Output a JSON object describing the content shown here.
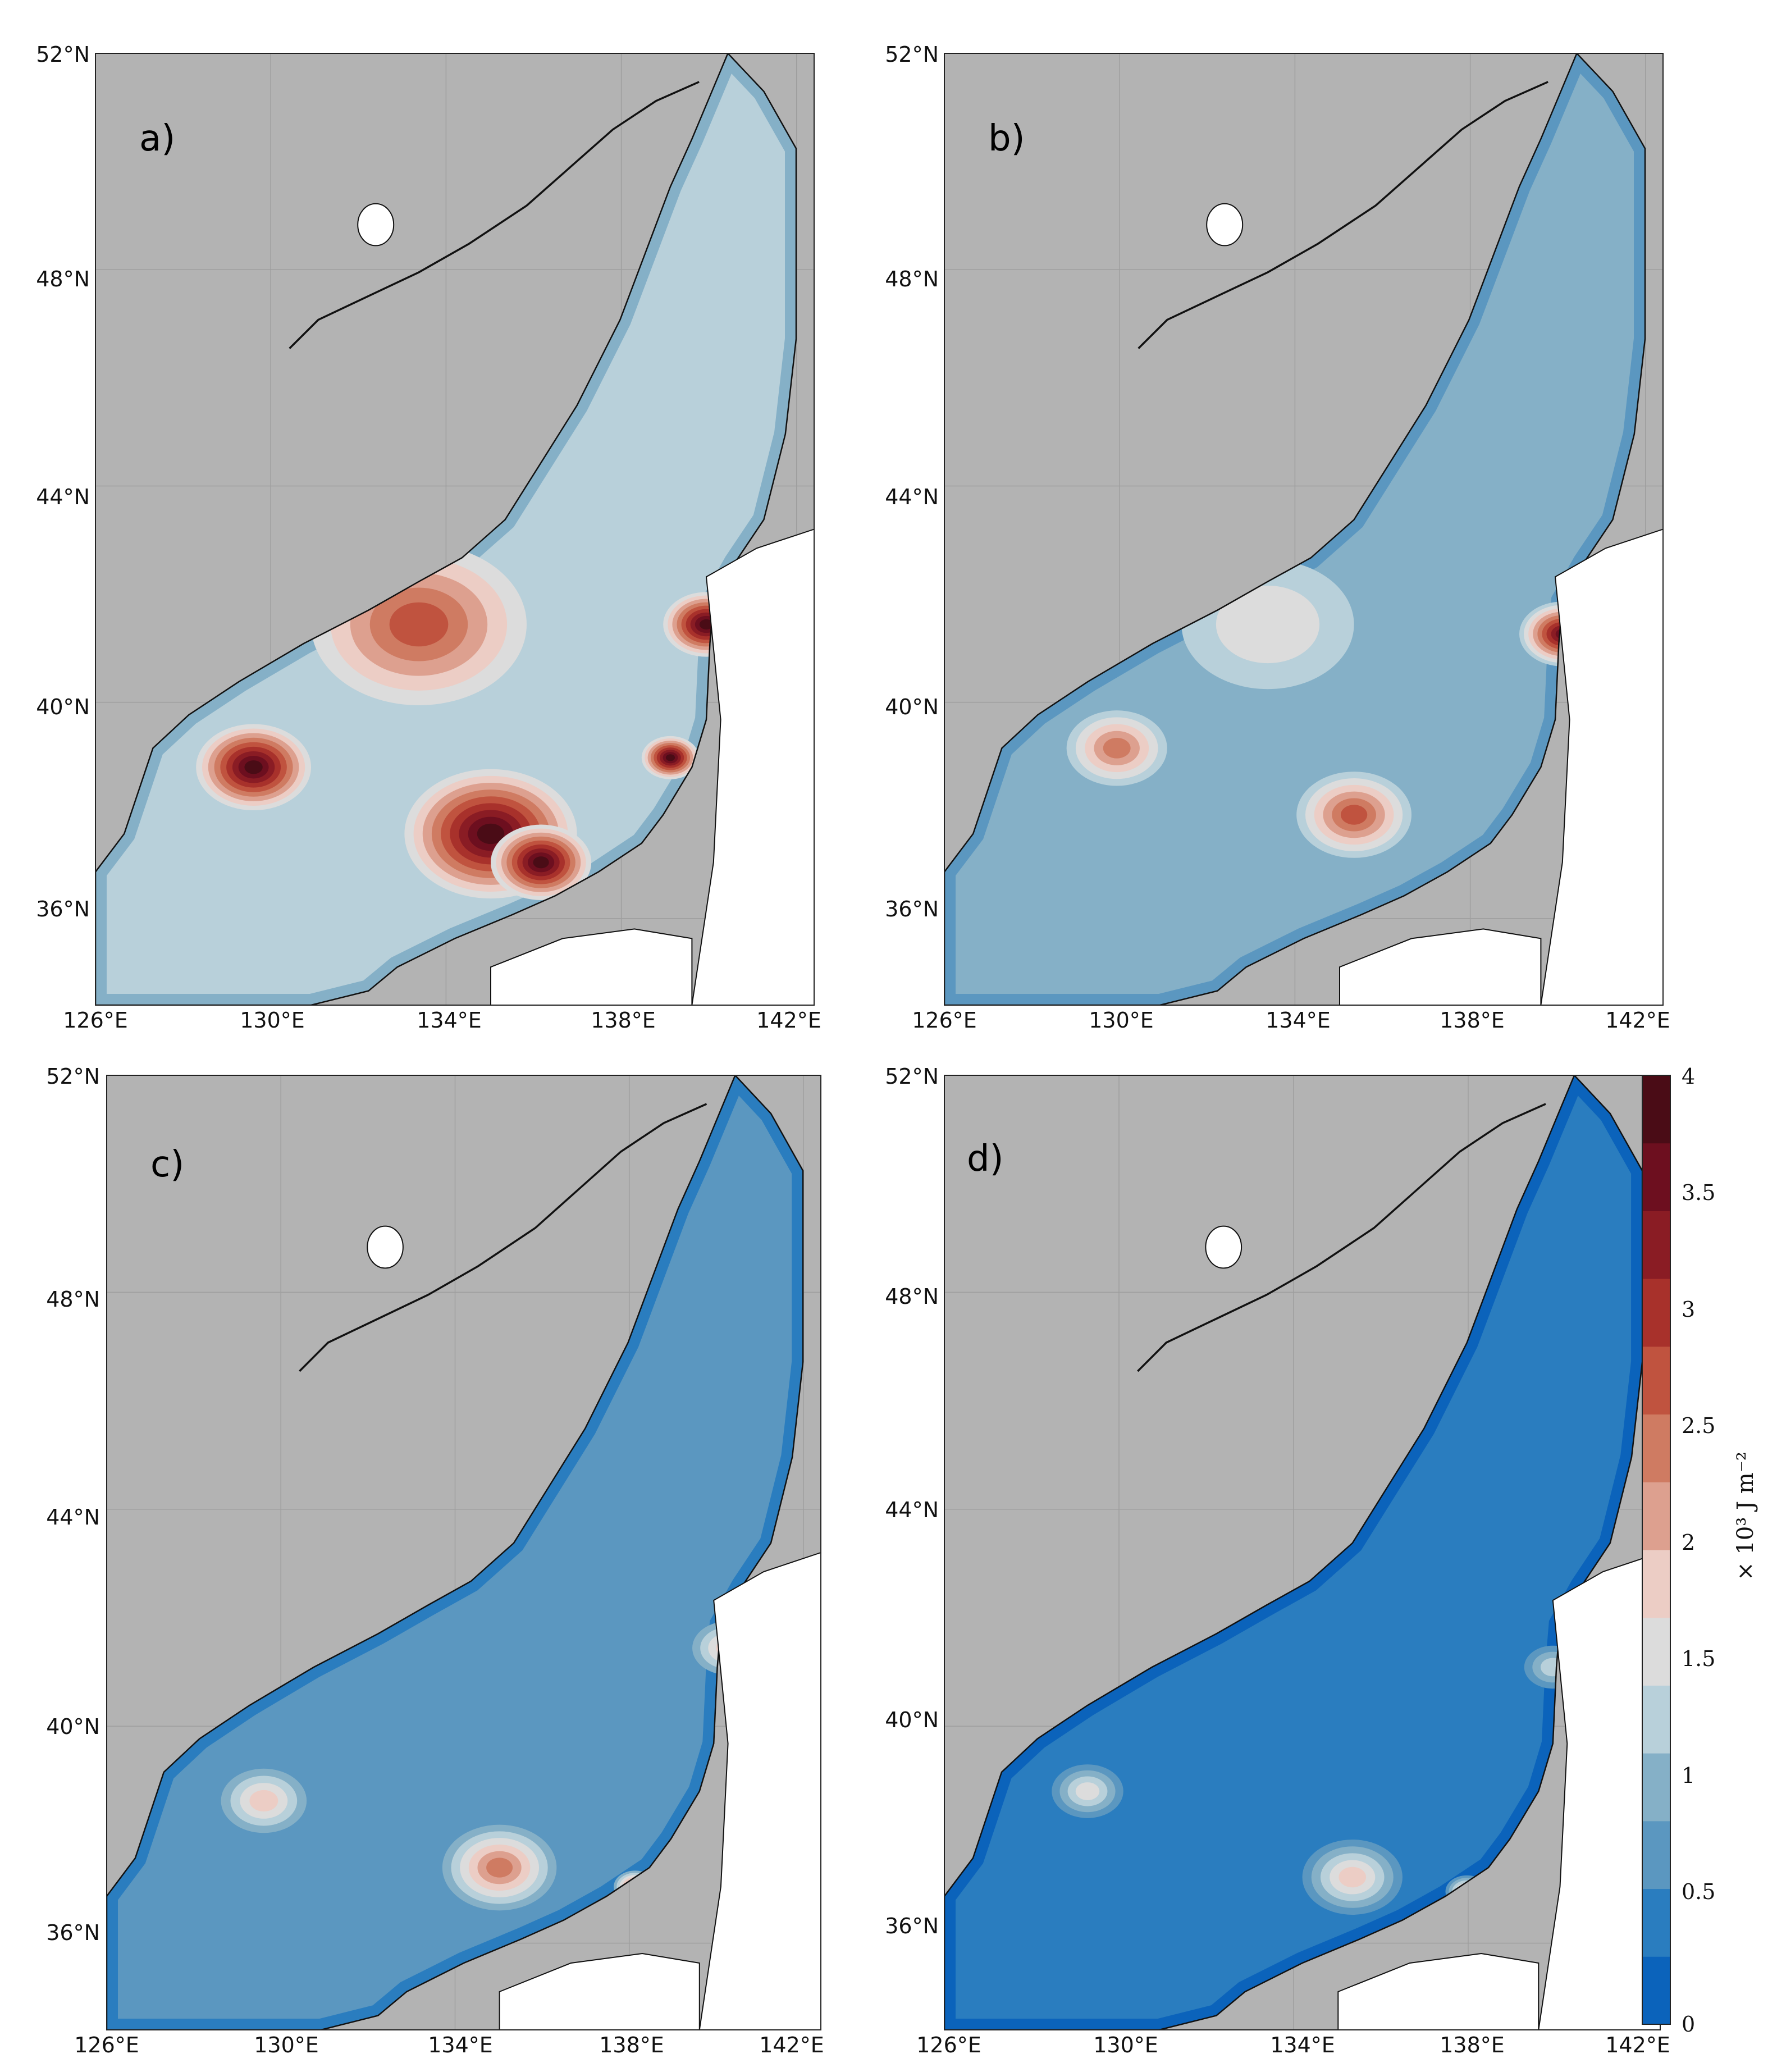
{
  "figure": {
    "panels": [
      {
        "label": "a)",
        "intensity": 1.0
      },
      {
        "label": "b)",
        "intensity": 0.62
      },
      {
        "label": "c)",
        "intensity": 0.42
      },
      {
        "label": "d)",
        "intensity": 0.34
      }
    ],
    "lon_ticks": [
      "126°E",
      "130°E",
      "134°E",
      "138°E",
      "142°E"
    ],
    "lat_ticks": [
      "52°N",
      "48°N",
      "44°N",
      "40°N",
      "36°N"
    ],
    "lon_range": [
      126,
      142.3
    ],
    "lat_range": [
      34.3,
      52
    ],
    "colorbar": {
      "ticks": [
        "4",
        "3.5",
        "3",
        "2.5",
        "2",
        "1.5",
        "1",
        "0.5",
        "0"
      ],
      "range": [
        0,
        4
      ],
      "label": "× 10³ J m⁻²",
      "colors": [
        "#0b63bb",
        "#2a7dbf",
        "#5b97c0",
        "#85b0c7",
        "#b8d0da",
        "#dcdcdc",
        "#eccdc5",
        "#dda08f",
        "#cf7b62",
        "#c0533f",
        "#a8312b",
        "#8a1c24",
        "#6d0f1f",
        "#4a0c16"
      ]
    },
    "land_color": "#b3b3b3",
    "outside_color": "#ffffff"
  }
}
